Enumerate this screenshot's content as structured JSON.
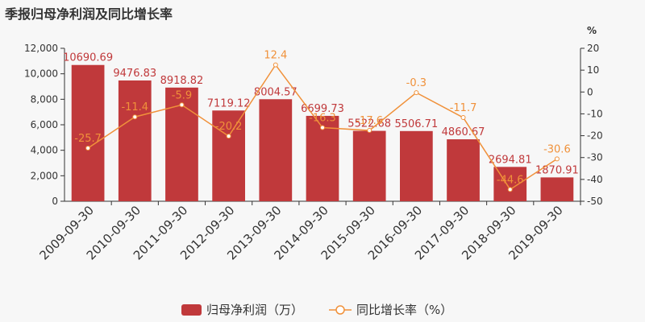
{
  "title": "季报归母净利润及同比增长率",
  "chart_data": {
    "type": "bar",
    "title": "季报归母净利润及同比增长率",
    "categories": [
      "2009-09-30",
      "2010-09-30",
      "2011-09-30",
      "2012-09-30",
      "2013-09-30",
      "2014-09-30",
      "2015-09-30",
      "2016-09-30",
      "2017-09-30",
      "2018-09-30",
      "2019-09-30"
    ],
    "series": [
      {
        "name": "归母净利润（万）",
        "type": "bar",
        "axis": "left",
        "color": "#c0393b",
        "values": [
          10690.69,
          9476.83,
          8918.82,
          7119.12,
          8004.57,
          6699.73,
          5522.68,
          5506.71,
          4860.67,
          2694.81,
          1870.91
        ],
        "labels": [
          "10690.69",
          "9476.83",
          "8918.82",
          "7119.12",
          "8004.57",
          "6699.73",
          "5522.68",
          "5506.71",
          "4860.67",
          "2694.81",
          "1870.91"
        ]
      },
      {
        "name": "同比增长率（%）",
        "type": "line",
        "axis": "right",
        "color": "#f0913a",
        "values": [
          -25.7,
          -11.4,
          -5.9,
          -20.2,
          12.4,
          -16.3,
          -17.6,
          -0.3,
          -11.7,
          -44.6,
          -30.6
        ],
        "labels": [
          "-25.7",
          "-11.4",
          "-5.9",
          "-20.2",
          "12.4",
          "-16.3",
          "-17.6",
          "-0.3",
          "-11.7",
          "-44.6",
          "-30.6"
        ]
      }
    ],
    "y_left": {
      "range": [
        0,
        12000
      ],
      "ticks": [
        "0",
        "2,000",
        "4,000",
        "6,000",
        "8,000",
        "10,000",
        "12,000"
      ]
    },
    "y_right": {
      "range": [
        -50,
        20
      ],
      "unit": "%",
      "ticks": [
        "-50",
        "-40",
        "-30",
        "-20",
        "-10",
        "0",
        "10",
        "20"
      ]
    },
    "grid": false,
    "legend": "bottom"
  }
}
